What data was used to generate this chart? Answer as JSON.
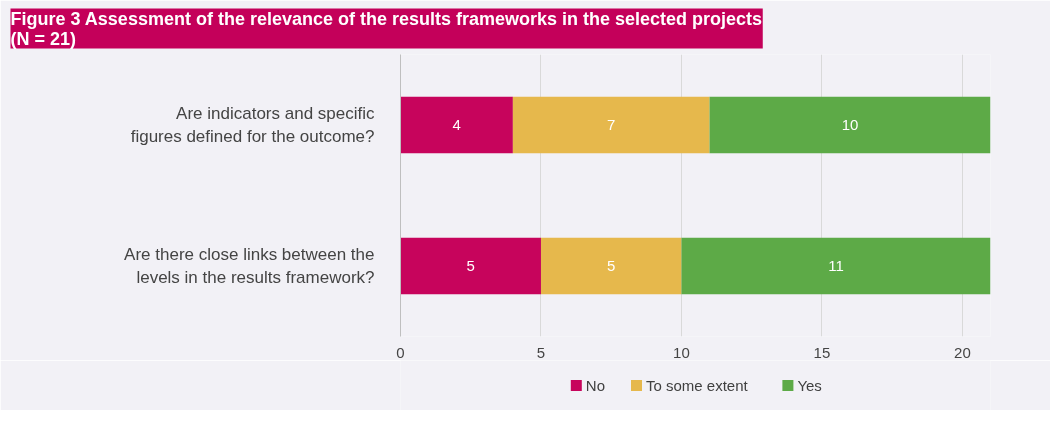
{
  "chart_data": {
    "type": "bar",
    "orientation": "horizontal",
    "stacked": true,
    "title": "Figure 3 Assessment of the relevance of the results frameworks in the selected projects\n(N = 21)",
    "categories": [
      "Are indicators and specific figures defined for the outcome?",
      "Are there close links between the levels in the results framework?"
    ],
    "series": [
      {
        "name": "No",
        "color": "#c7045c",
        "values": [
          4,
          5
        ]
      },
      {
        "name": "To some extent",
        "color": "#e6b84c",
        "values": [
          7,
          5
        ]
      },
      {
        "name": "Yes",
        "color": "#5daa47",
        "values": [
          10,
          11
        ]
      }
    ],
    "xlim": [
      0,
      21
    ],
    "xticks": [
      0,
      5,
      10,
      15,
      20
    ],
    "grid": "x",
    "legend": "bottom",
    "data_labels": true
  }
}
